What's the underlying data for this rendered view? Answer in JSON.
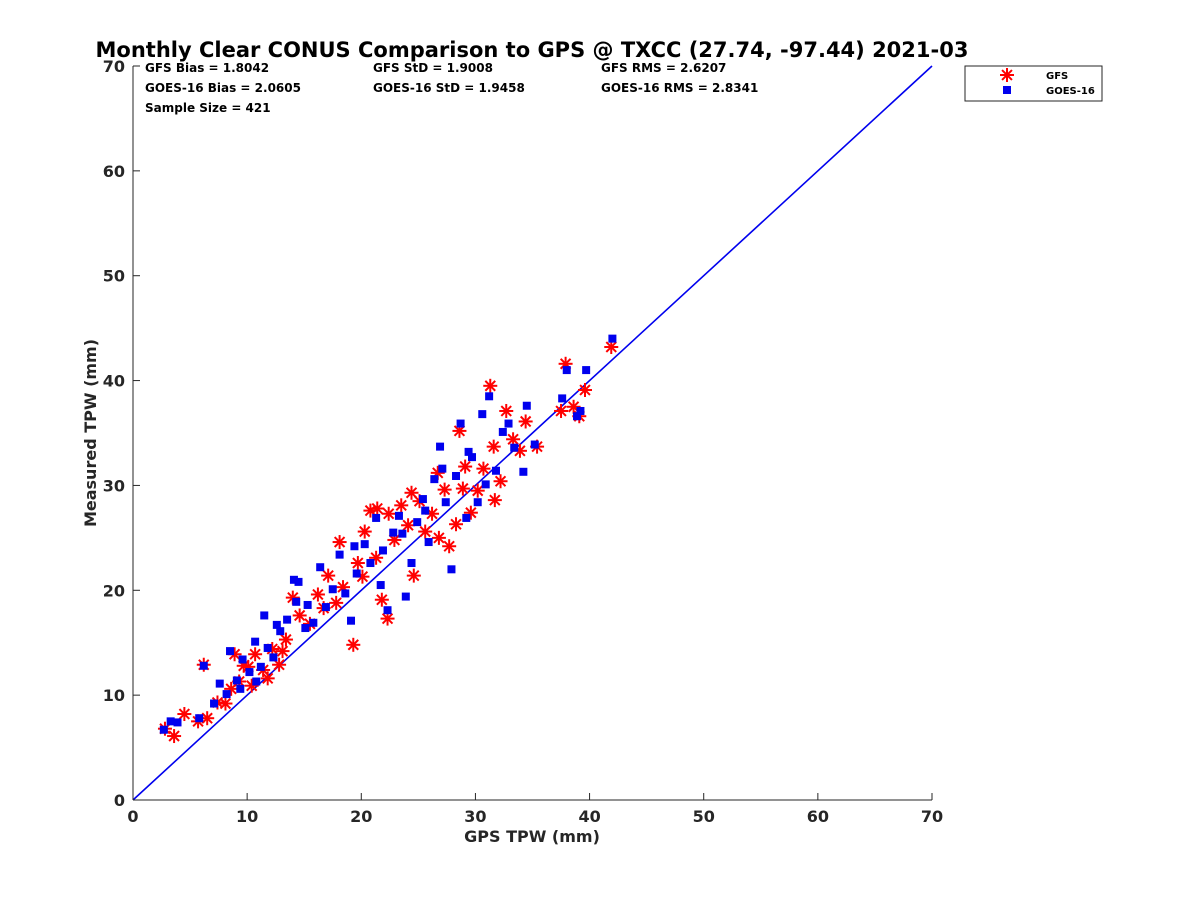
{
  "chart_data": {
    "type": "scatter",
    "title": "Monthly Clear CONUS Comparison to GPS @ TXCC (27.74, -97.44) 2021-03",
    "xlabel": "GPS TPW (mm)",
    "ylabel": "Measured TPW (mm)",
    "xlim": [
      0,
      70
    ],
    "ylim": [
      0,
      70
    ],
    "xticks": [
      "0",
      "10",
      "20",
      "30",
      "40",
      "50",
      "60",
      "70"
    ],
    "yticks": [
      "0",
      "10",
      "20",
      "30",
      "40",
      "50",
      "60",
      "70"
    ],
    "grid": false,
    "legend_position": "top-right, outside axes",
    "reference_line": {
      "x": [
        0,
        70
      ],
      "y": [
        0,
        70
      ],
      "color": "#0000ee"
    },
    "stats": {
      "gfs_bias": "GFS Bias = 1.8042",
      "gfs_std": "GFS StD = 1.9008",
      "gfs_rms": "GFS RMS = 2.6207",
      "goes_bias": "GOES-16 Bias = 2.0605",
      "goes_std": "GOES-16 StD = 1.9458",
      "goes_rms": "GOES-16 RMS = 2.8341",
      "sample_size": "Sample Size = 421"
    },
    "series": [
      {
        "name": "GFS",
        "marker": "asterisk",
        "color": "#ff0000",
        "points": [
          [
            2.8,
            6.8
          ],
          [
            3.6,
            6.1
          ],
          [
            4.5,
            8.2
          ],
          [
            5.7,
            7.5
          ],
          [
            6.2,
            12.9
          ],
          [
            6.5,
            7.8
          ],
          [
            7.4,
            9.3
          ],
          [
            8.1,
            9.2
          ],
          [
            8.6,
            10.6
          ],
          [
            9.3,
            11.3
          ],
          [
            10.1,
            12.7
          ],
          [
            10.7,
            13.9
          ],
          [
            11.4,
            12.4
          ],
          [
            12.2,
            14.4
          ],
          [
            12.8,
            12.9
          ],
          [
            13.4,
            15.3
          ],
          [
            14.0,
            19.3
          ],
          [
            14.6,
            17.6
          ],
          [
            15.5,
            16.8
          ],
          [
            16.2,
            19.6
          ],
          [
            17.1,
            21.4
          ],
          [
            17.8,
            18.8
          ],
          [
            18.4,
            20.3
          ],
          [
            19.3,
            14.8
          ],
          [
            19.7,
            22.6
          ],
          [
            20.3,
            25.6
          ],
          [
            20.8,
            27.6
          ],
          [
            21.3,
            23.1
          ],
          [
            21.8,
            19.1
          ],
          [
            22.3,
            17.3
          ],
          [
            22.9,
            24.8
          ],
          [
            23.5,
            28.1
          ],
          [
            24.1,
            26.2
          ],
          [
            24.6,
            21.4
          ],
          [
            25.1,
            28.5
          ],
          [
            25.6,
            25.6
          ],
          [
            26.2,
            27.3
          ],
          [
            26.8,
            25.0
          ],
          [
            27.3,
            29.6
          ],
          [
            27.7,
            24.2
          ],
          [
            28.3,
            26.3
          ],
          [
            28.6,
            35.2
          ],
          [
            29.1,
            31.8
          ],
          [
            29.6,
            27.4
          ],
          [
            30.2,
            29.5
          ],
          [
            30.7,
            31.6
          ],
          [
            31.3,
            39.5
          ],
          [
            31.6,
            33.7
          ],
          [
            32.2,
            30.4
          ],
          [
            32.7,
            37.1
          ],
          [
            33.3,
            34.4
          ],
          [
            33.9,
            33.3
          ],
          [
            34.4,
            36.1
          ],
          [
            35.4,
            33.7
          ],
          [
            37.5,
            37.1
          ],
          [
            37.9,
            41.6
          ],
          [
            38.6,
            37.5
          ],
          [
            39.1,
            36.6
          ],
          [
            39.6,
            39.1
          ],
          [
            41.9,
            43.2
          ],
          [
            8.9,
            13.9
          ],
          [
            10.4,
            10.9
          ],
          [
            11.8,
            11.6
          ],
          [
            16.7,
            18.3
          ],
          [
            18.1,
            24.6
          ],
          [
            20.1,
            21.3
          ],
          [
            22.4,
            27.3
          ],
          [
            24.4,
            29.3
          ],
          [
            26.7,
            31.2
          ],
          [
            28.9,
            29.7
          ],
          [
            31.7,
            28.6
          ],
          [
            21.4,
            27.8
          ],
          [
            13.1,
            14.2
          ],
          [
            9.7,
            12.8
          ]
        ]
      },
      {
        "name": "GOES-16",
        "marker": "square",
        "color": "#0000ee",
        "points": [
          [
            2.7,
            6.7
          ],
          [
            3.3,
            7.5
          ],
          [
            3.9,
            7.4
          ],
          [
            5.8,
            7.8
          ],
          [
            6.2,
            12.8
          ],
          [
            7.1,
            9.2
          ],
          [
            7.6,
            11.1
          ],
          [
            8.2,
            10.1
          ],
          [
            8.5,
            14.2
          ],
          [
            9.1,
            11.4
          ],
          [
            9.6,
            13.4
          ],
          [
            10.2,
            12.2
          ],
          [
            10.7,
            15.1
          ],
          [
            11.2,
            12.7
          ],
          [
            11.8,
            14.5
          ],
          [
            12.3,
            13.6
          ],
          [
            12.9,
            16.1
          ],
          [
            13.5,
            17.2
          ],
          [
            14.1,
            21.0
          ],
          [
            14.5,
            20.8
          ],
          [
            15.1,
            16.4
          ],
          [
            15.8,
            16.9
          ],
          [
            16.4,
            22.2
          ],
          [
            16.9,
            18.4
          ],
          [
            17.5,
            20.1
          ],
          [
            18.1,
            23.4
          ],
          [
            18.6,
            19.7
          ],
          [
            19.1,
            17.1
          ],
          [
            19.6,
            21.6
          ],
          [
            20.3,
            24.4
          ],
          [
            20.8,
            22.6
          ],
          [
            21.3,
            26.9
          ],
          [
            21.7,
            20.5
          ],
          [
            22.3,
            18.1
          ],
          [
            22.8,
            25.5
          ],
          [
            23.3,
            27.1
          ],
          [
            23.9,
            19.4
          ],
          [
            24.4,
            22.6
          ],
          [
            24.9,
            26.5
          ],
          [
            25.4,
            28.7
          ],
          [
            25.9,
            24.6
          ],
          [
            26.4,
            30.6
          ],
          [
            26.9,
            33.7
          ],
          [
            27.4,
            28.4
          ],
          [
            27.9,
            22.0
          ],
          [
            28.3,
            30.9
          ],
          [
            28.7,
            35.9
          ],
          [
            29.2,
            26.9
          ],
          [
            29.7,
            32.7
          ],
          [
            30.2,
            28.4
          ],
          [
            30.6,
            36.8
          ],
          [
            31.2,
            38.5
          ],
          [
            31.8,
            31.4
          ],
          [
            32.4,
            35.1
          ],
          [
            32.9,
            35.9
          ],
          [
            33.4,
            33.6
          ],
          [
            34.2,
            31.3
          ],
          [
            34.5,
            37.6
          ],
          [
            35.2,
            33.9
          ],
          [
            37.6,
            38.3
          ],
          [
            38.0,
            41.0
          ],
          [
            38.9,
            36.6
          ],
          [
            39.2,
            37.1
          ],
          [
            39.7,
            41.0
          ],
          [
            42.0,
            44.0
          ],
          [
            9.4,
            10.6
          ],
          [
            10.8,
            11.3
          ],
          [
            12.6,
            16.7
          ],
          [
            15.3,
            18.6
          ],
          [
            19.4,
            24.2
          ],
          [
            21.9,
            23.8
          ],
          [
            23.6,
            25.4
          ],
          [
            25.6,
            27.6
          ],
          [
            27.1,
            31.6
          ],
          [
            29.4,
            33.2
          ],
          [
            30.9,
            30.1
          ],
          [
            11.5,
            17.6
          ],
          [
            14.3,
            18.9
          ]
        ]
      }
    ]
  }
}
